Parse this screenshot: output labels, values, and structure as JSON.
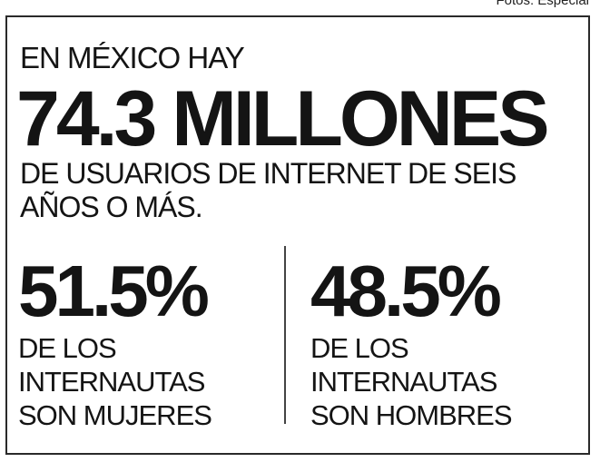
{
  "photo_credit": "Fotos: Especial",
  "headline": {
    "intro": "EN MÉXICO HAY",
    "big_number": "74.3 MILLONES",
    "subtitle_line1": "DE USUARIOS DE INTERNET DE SEIS",
    "subtitle_line2": "AÑOS O MÁS."
  },
  "stats": [
    {
      "value": "51.5%",
      "lines": [
        "DE LOS",
        "INTERNAUTAS",
        "SON MUJERES"
      ]
    },
    {
      "value": "48.5%",
      "lines": [
        "DE LOS",
        "INTERNAUTAS",
        "SON HOMBRES"
      ]
    }
  ]
}
